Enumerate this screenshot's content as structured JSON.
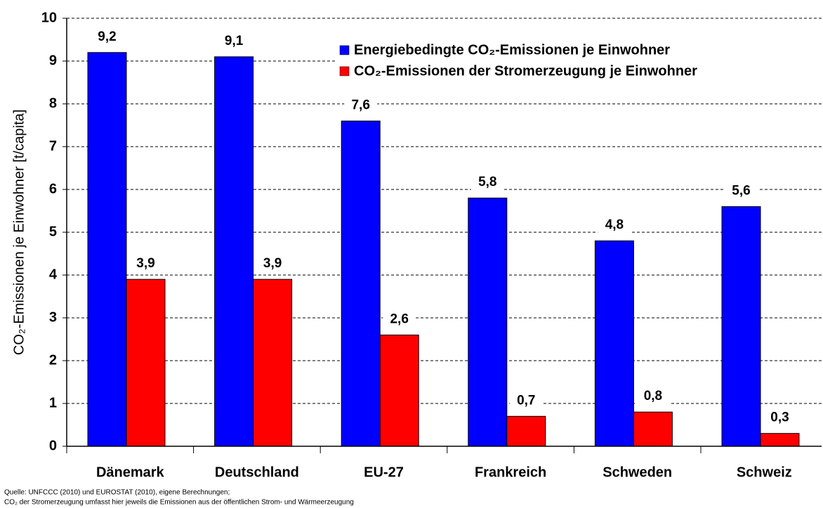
{
  "chart_data": {
    "type": "bar",
    "ylabel": "CO₂-Emissionen je Einwohner [t/capita]",
    "categories": [
      "Dänemark",
      "Deutschland",
      "EU-27",
      "Frankreich",
      "Schweden",
      "Schweiz"
    ],
    "series": [
      {
        "name": "Energiebedingte CO₂-Emissionen je Einwohner",
        "color": "#0000ff",
        "values": [
          9.2,
          9.1,
          7.6,
          5.8,
          4.8,
          5.6
        ],
        "value_labels": [
          "9,2",
          "9,1",
          "7,6",
          "5,8",
          "4,8",
          "5,6"
        ]
      },
      {
        "name": "CO₂-Emissionen der Stromerzeugung je Einwohner",
        "color": "#ff0000",
        "values": [
          3.9,
          3.9,
          2.6,
          0.7,
          0.8,
          0.3
        ],
        "value_labels": [
          "3,9",
          "3,9",
          "2,6",
          "0,7",
          "0,8",
          "0,3"
        ]
      }
    ],
    "ylim": [
      0,
      10
    ],
    "yticks": [
      0,
      1,
      2,
      3,
      4,
      5,
      6,
      7,
      8,
      9,
      10
    ],
    "grid": true,
    "legend": "upper right",
    "source": [
      "Quelle: UNFCCC (2010) und EUROSTAT (2010), eigene Berechnungen;",
      "CO₂ der Stromerzeugung umfasst hier jeweils die Emissionen aus der öffentlichen Strom- und Wärmeerzeugung"
    ]
  }
}
